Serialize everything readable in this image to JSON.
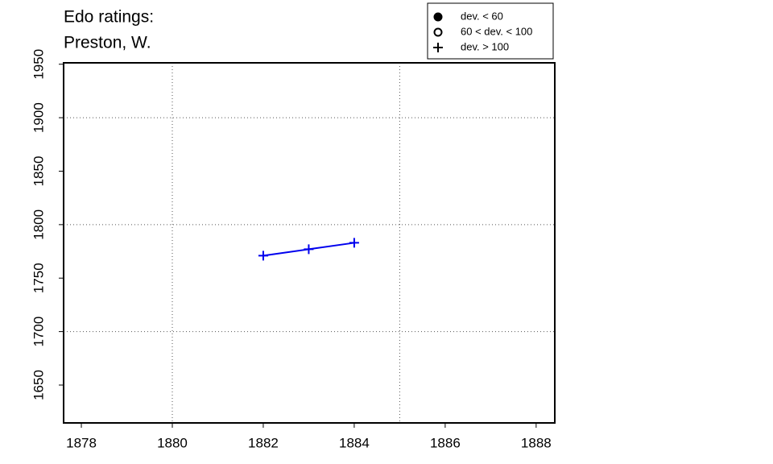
{
  "chart_data": {
    "type": "line",
    "title": [
      "Edo ratings:",
      "Preston, W."
    ],
    "x": [
      1882,
      1883,
      1884
    ],
    "series": [
      {
        "name": "dev. > 100",
        "color": "#0000ee",
        "marker": "plus",
        "values": [
          1771,
          1777,
          1783
        ]
      }
    ],
    "xlim": [
      1877.61,
      1888.41
    ],
    "ylim": [
      1614.6,
      1951.3
    ],
    "xticks": [
      1878,
      1880,
      1882,
      1884,
      1886,
      1888
    ],
    "yticks": [
      1650,
      1700,
      1750,
      1800,
      1850,
      1900,
      1950
    ],
    "grid_x": [
      1880,
      1885
    ],
    "grid_y": [
      1700,
      1800,
      1900
    ],
    "legend": {
      "position": "top-right",
      "entries": [
        {
          "label": "dev. < 60",
          "marker": "filled-circle"
        },
        {
          "label": "60 < dev. < 100",
          "marker": "open-circle"
        },
        {
          "label": "dev. > 100",
          "marker": "plus"
        }
      ]
    }
  }
}
